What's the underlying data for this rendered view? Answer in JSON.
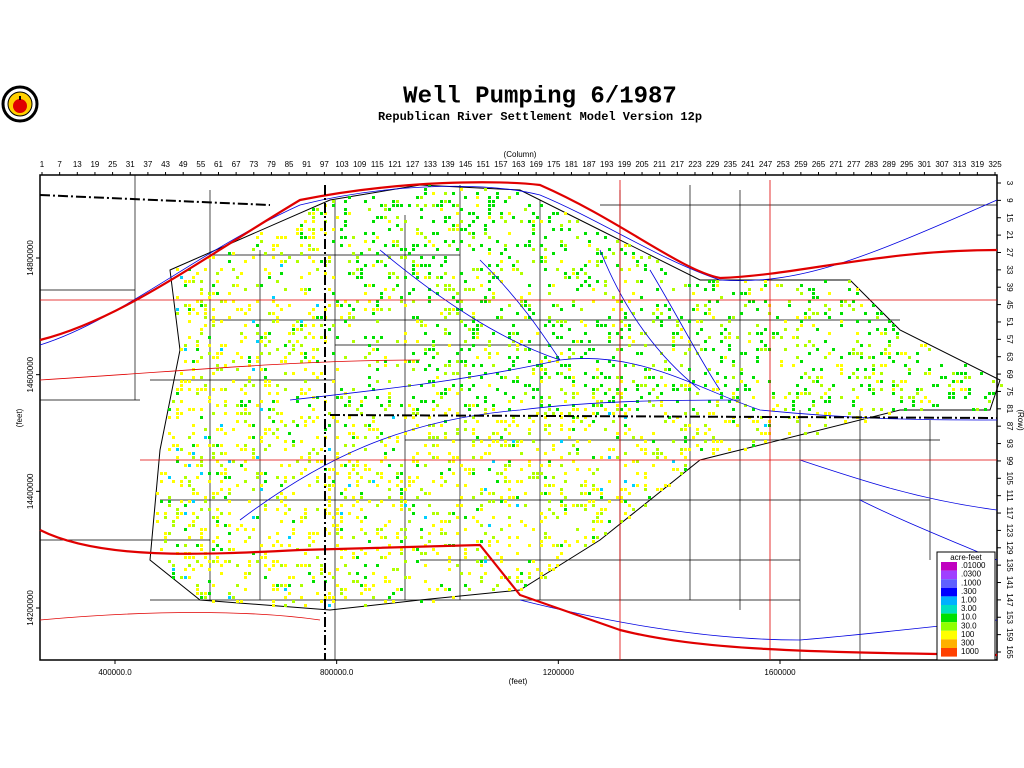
{
  "header": {
    "title": "Well Pumping  6/1987",
    "subtitle": "Republican River Settlement Model Version 12p"
  },
  "axes": {
    "column_label": "(Column)",
    "column_ticks": [
      1,
      7,
      13,
      19,
      25,
      31,
      37,
      43,
      49,
      55,
      61,
      67,
      73,
      79,
      85,
      91,
      97,
      103,
      109,
      115,
      121,
      127,
      133,
      139,
      145,
      151,
      157,
      163,
      169,
      175,
      181,
      187,
      193,
      199,
      205,
      211,
      217,
      223,
      229,
      235,
      241,
      247,
      253,
      259,
      265,
      271,
      277,
      283,
      289,
      295,
      301,
      307,
      313,
      319,
      325
    ],
    "row_label": "(Row)",
    "row_ticks": [
      3,
      9,
      15,
      21,
      27,
      33,
      39,
      45,
      51,
      57,
      63,
      69,
      75,
      81,
      87,
      93,
      99,
      105,
      111,
      117,
      123,
      129,
      135,
      141,
      147,
      153,
      159,
      165
    ],
    "left_label": "(feet)",
    "left_ticks": [
      14800000,
      14600000,
      14400000,
      14200000
    ],
    "bottom_label": "(feet)",
    "bottom_ticks": [
      {
        "value": 400000,
        "label": "400000.0"
      },
      {
        "value": 800000,
        "label": "800000.0"
      },
      1200000,
      1600000
    ]
  },
  "legend": {
    "title": "acre-feet",
    "entries": [
      {
        "label": ".01000",
        "color": "#c000c0"
      },
      {
        "label": ".0300",
        "color": "#a040ff"
      },
      {
        "label": ".1000",
        "color": "#6060ff"
      },
      {
        "label": ".300",
        "color": "#0000ff"
      },
      {
        "label": "1.00",
        "color": "#00b0ff"
      },
      {
        "label": "3.00",
        "color": "#00e0c0"
      },
      {
        "label": "10.0",
        "color": "#00e000"
      },
      {
        "label": "30.0",
        "color": "#90ff00"
      },
      {
        "label": "100",
        "color": "#ffff00"
      },
      {
        "label": "300",
        "color": "#ffb000"
      },
      {
        "label": "1000",
        "color": "#ff4000"
      }
    ]
  }
}
